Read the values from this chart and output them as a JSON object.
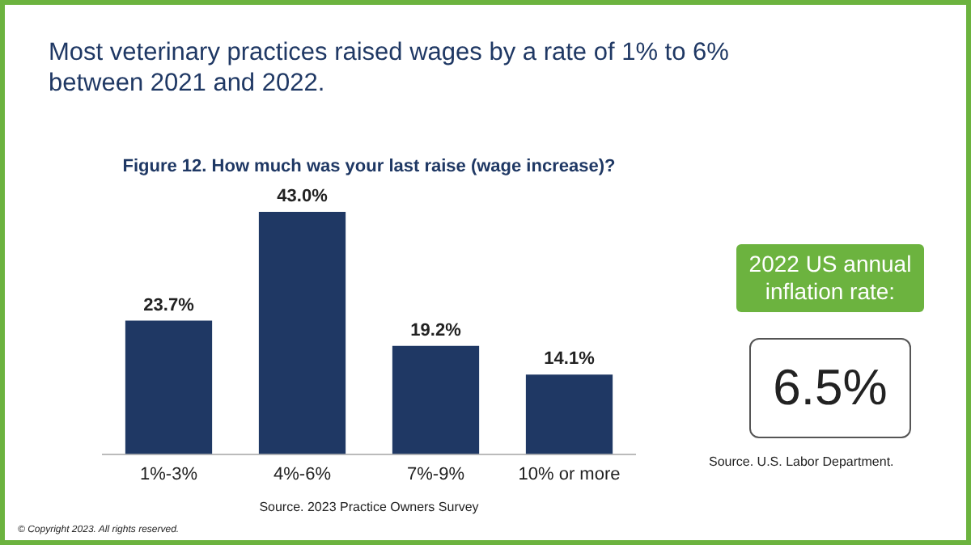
{
  "chart_data": {
    "type": "bar",
    "title": "Most veterinary practices raised wages by a rate of 1% to 6% between 2021 and 2022.",
    "subtitle": "Figure 12. How much was your last raise (wage increase)?",
    "categories": [
      "1%-3%",
      "4%-6%",
      "7%-9%",
      "10% or more"
    ],
    "values": [
      23.7,
      43.0,
      19.2,
      14.1
    ],
    "value_labels": [
      "23.7%",
      "43.0%",
      "19.2%",
      "14.1%"
    ],
    "color": "#1f3864",
    "grid": false,
    "legend": false,
    "annotations": [
      "2022 US annual inflation rate:",
      "6.5%",
      "Source. U.S. Labor Department.",
      "Source. 2023 Practice Owners Survey",
      "© Copyright 2023. All rights reserved."
    ]
  }
}
